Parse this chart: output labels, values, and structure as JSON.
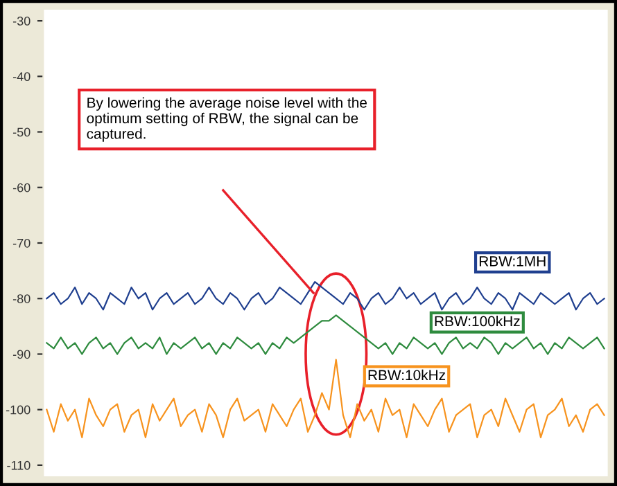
{
  "chart_data": {
    "type": "line",
    "annotations": [
      "By lowering the average noise level with the optimum setting of RBW, the signal can be captured."
    ],
    "categories": [
      null,
      null,
      null,
      null,
      null,
      null,
      null,
      null,
      null,
      null,
      null,
      null,
      null,
      null,
      null,
      null,
      null,
      null,
      null,
      null,
      null,
      null,
      null,
      null,
      null,
      null,
      null,
      null,
      null,
      null,
      null,
      null,
      null,
      null,
      null,
      null,
      null,
      null,
      null,
      null,
      null,
      null,
      null,
      null,
      null,
      null,
      null,
      null,
      null,
      null,
      null,
      null,
      null,
      null,
      null,
      null,
      null,
      null,
      null,
      null,
      null,
      null,
      null,
      null,
      null,
      null,
      null,
      null,
      null,
      null,
      null,
      null,
      null,
      null,
      null,
      null,
      null,
      null,
      null,
      null
    ],
    "series": [
      {
        "name": "RBW:1MH",
        "color": "#1f3f8f",
        "values": [
          -80,
          -79,
          -81,
          -80,
          -78,
          -81,
          -79,
          -80,
          -82,
          -79,
          -80,
          -81,
          -78,
          -80,
          -79,
          -82,
          -80,
          -79,
          -81,
          -80,
          -79,
          -81,
          -80,
          -78,
          -80,
          -81,
          -79,
          -80,
          -82,
          -80,
          -79,
          -81,
          -80,
          -78,
          -79,
          -80,
          -81,
          -79,
          -77,
          -78,
          -79,
          -80,
          -81,
          -79,
          -80,
          -82,
          -80,
          -79,
          -81,
          -80,
          -78,
          -80,
          -79,
          -81,
          -80,
          -79,
          -82,
          -80,
          -79,
          -81,
          -80,
          -78,
          -80,
          -81,
          -79,
          -80,
          -82,
          -79,
          -80,
          -81,
          -79,
          -80,
          -81,
          -80,
          -79,
          -82,
          -80,
          -79,
          -81,
          -80
        ]
      },
      {
        "name": "RBW:100kHz",
        "color": "#2e8b3e",
        "values": [
          -88,
          -89,
          -87,
          -89,
          -88,
          -90,
          -88,
          -87,
          -89,
          -88,
          -90,
          -88,
          -87,
          -89,
          -88,
          -89,
          -87,
          -90,
          -88,
          -89,
          -88,
          -87,
          -89,
          -88,
          -90,
          -88,
          -89,
          -87,
          -88,
          -89,
          -88,
          -90,
          -88,
          -89,
          -87,
          -88,
          -87,
          -86,
          -85,
          -84,
          -84,
          -83,
          -84,
          -85,
          -86,
          -87,
          -88,
          -89,
          -88,
          -90,
          -88,
          -89,
          -87,
          -88,
          -89,
          -88,
          -90,
          -88,
          -87,
          -89,
          -88,
          -89,
          -87,
          -88,
          -90,
          -88,
          -89,
          -88,
          -87,
          -89,
          -88,
          -90,
          -88,
          -89,
          -87,
          -88,
          -89,
          -88,
          -87,
          -89
        ]
      },
      {
        "name": "RBW:10kHz",
        "color": "#f7931e",
        "values": [
          -100,
          -104,
          -99,
          -102,
          -100,
          -105,
          -98,
          -101,
          -103,
          -100,
          -99,
          -104,
          -101,
          -100,
          -105,
          -99,
          -102,
          -100,
          -98,
          -103,
          -101,
          -100,
          -104,
          -99,
          -101,
          -105,
          -100,
          -98,
          -102,
          -101,
          -100,
          -104,
          -99,
          -101,
          -103,
          -100,
          -98,
          -104,
          -101,
          -97,
          -100,
          -91,
          -101,
          -105,
          -99,
          -102,
          -100,
          -104,
          -98,
          -101,
          -100,
          -105,
          -99,
          -101,
          -103,
          -100,
          -98,
          -104,
          -101,
          -100,
          -99,
          -105,
          -101,
          -100,
          -103,
          -98,
          -101,
          -104,
          -100,
          -99,
          -105,
          -101,
          -100,
          -98,
          -103,
          -101,
          -104,
          -100,
          -99,
          -101
        ]
      }
    ],
    "ylim": [
      -112,
      -28
    ],
    "yticks": [
      -30,
      -40,
      -50,
      -60,
      -70,
      -80,
      -90,
      -100,
      -110
    ],
    "grid": false,
    "legend": false,
    "line_style": "solid"
  }
}
